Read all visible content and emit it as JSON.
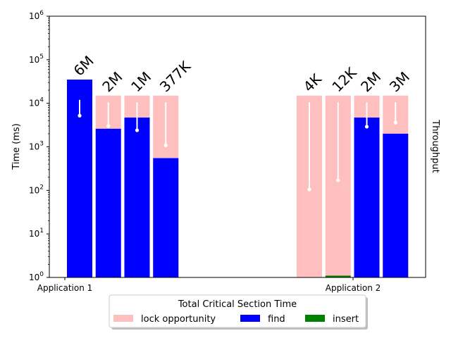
{
  "chart_data": {
    "type": "bar",
    "y_scale": "log",
    "ylim": [
      1,
      1000000
    ],
    "ylabel": "Time (ms)",
    "y2label": "Throughput",
    "y_tick_labels": [
      {
        "value": 1,
        "base": "10",
        "exp": "0"
      },
      {
        "value": 10,
        "base": "10",
        "exp": "1"
      },
      {
        "value": 100,
        "base": "10",
        "exp": "2"
      },
      {
        "value": 1000,
        "base": "10",
        "exp": "3"
      },
      {
        "value": 10000,
        "base": "10",
        "exp": "4"
      },
      {
        "value": 100000,
        "base": "10",
        "exp": "5"
      },
      {
        "value": 1000000,
        "base": "10",
        "exp": "6"
      }
    ],
    "categories": [
      "Application 1",
      "Application 2"
    ],
    "legend": {
      "title": "Total Critical Section Time",
      "placement": "bottom-center",
      "entries": [
        {
          "name": "lock opportunity",
          "color": "#ffbfbf"
        },
        {
          "name": "find",
          "color": "#0000ff"
        },
        {
          "name": "insert",
          "color": "#008000"
        }
      ]
    },
    "groups": [
      {
        "category": "Application 1",
        "bars": [
          {
            "label": "6M",
            "lock_opportunity": 35000,
            "find": 35000,
            "insert": 0,
            "throughput_marker": 5200,
            "whisker_top": 12000
          },
          {
            "label": "2M",
            "lock_opportunity": 15000,
            "find": 2600,
            "insert": 0,
            "throughput_marker": 3000,
            "whisker_top": 10500
          },
          {
            "label": "1M",
            "lock_opportunity": 15000,
            "find": 4700,
            "insert": 0,
            "throughput_marker": 2400,
            "whisker_top": 10500
          },
          {
            "label": "377K",
            "lock_opportunity": 15000,
            "find": 550,
            "insert": 0,
            "throughput_marker": 1080,
            "whisker_top": 10500
          }
        ]
      },
      {
        "category": "Application 2",
        "bars": [
          {
            "label": "4K",
            "lock_opportunity": 15000,
            "find": 0,
            "insert": 0,
            "throughput_marker": 105,
            "whisker_top": 10500
          },
          {
            "label": "12K",
            "lock_opportunity": 15000,
            "find": 0,
            "insert": 1.1,
            "throughput_marker": 170,
            "whisker_top": 10500
          },
          {
            "label": "2M",
            "lock_opportunity": 15000,
            "find": 4700,
            "insert": 0,
            "throughput_marker": 2900,
            "whisker_top": 10500
          },
          {
            "label": "3M",
            "lock_opportunity": 15000,
            "find": 2000,
            "insert": 0,
            "throughput_marker": 3600,
            "whisker_top": 10500
          }
        ]
      }
    ]
  }
}
